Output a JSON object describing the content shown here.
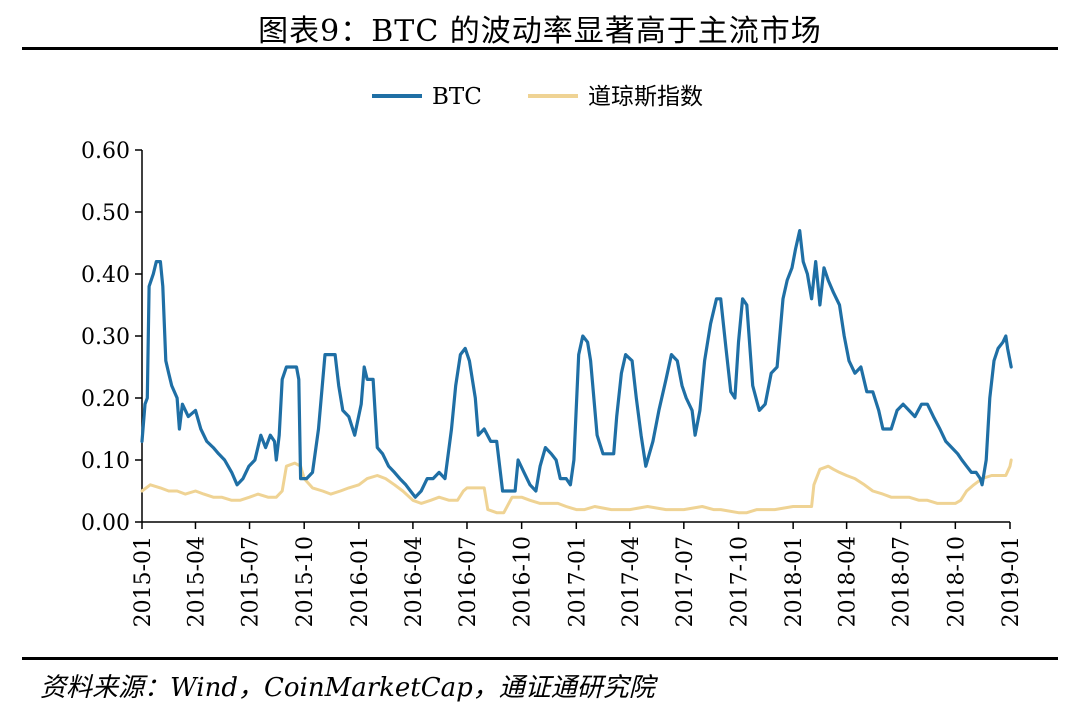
{
  "title": "图表9：BTC 的波动率显著高于主流市场",
  "source": "资料来源：Wind，CoinMarketCap，通证通研究院",
  "chart_data": {
    "type": "line",
    "title": "图表9：BTC 的波动率显著高于主流市场",
    "xlabel": "",
    "ylabel": "",
    "ylim": [
      0,
      0.6
    ],
    "yticks": [
      "0.00",
      "0.10",
      "0.20",
      "0.30",
      "0.40",
      "0.50",
      "0.60"
    ],
    "xticks": [
      "2015-01",
      "2015-04",
      "2015-07",
      "2015-10",
      "2016-01",
      "2016-04",
      "2016-07",
      "2016-10",
      "2017-01",
      "2017-04",
      "2017-07",
      "2017-10",
      "2018-01",
      "2018-04",
      "2018-07",
      "2018-10",
      "2019-01"
    ],
    "xlim": [
      "2015-01-01",
      "2019-01-01"
    ],
    "legend_position": "top-center",
    "grid": false,
    "colors": {
      "BTC": "#1f6fa5",
      "道琼斯指数": "#efd394"
    },
    "series": [
      {
        "name": "BTC",
        "points": [
          [
            "2015-01-01",
            0.13
          ],
          [
            "2015-01-06",
            0.19
          ],
          [
            "2015-01-10",
            0.2
          ],
          [
            "2015-01-13",
            0.38
          ],
          [
            "2015-01-20",
            0.4
          ],
          [
            "2015-01-25",
            0.42
          ],
          [
            "2015-02-01",
            0.42
          ],
          [
            "2015-02-05",
            0.38
          ],
          [
            "2015-02-10",
            0.26
          ],
          [
            "2015-02-15",
            0.24
          ],
          [
            "2015-02-20",
            0.22
          ],
          [
            "2015-03-01",
            0.2
          ],
          [
            "2015-03-05",
            0.15
          ],
          [
            "2015-03-10",
            0.19
          ],
          [
            "2015-03-20",
            0.17
          ],
          [
            "2015-04-01",
            0.18
          ],
          [
            "2015-04-10",
            0.15
          ],
          [
            "2015-04-20",
            0.13
          ],
          [
            "2015-05-01",
            0.12
          ],
          [
            "2015-05-10",
            0.11
          ],
          [
            "2015-05-20",
            0.1
          ],
          [
            "2015-06-01",
            0.08
          ],
          [
            "2015-06-10",
            0.06
          ],
          [
            "2015-06-20",
            0.07
          ],
          [
            "2015-06-30",
            0.09
          ],
          [
            "2015-07-10",
            0.1
          ],
          [
            "2015-07-20",
            0.14
          ],
          [
            "2015-07-28",
            0.12
          ],
          [
            "2015-08-05",
            0.14
          ],
          [
            "2015-08-12",
            0.13
          ],
          [
            "2015-08-15",
            0.1
          ],
          [
            "2015-08-20",
            0.14
          ],
          [
            "2015-08-25",
            0.23
          ],
          [
            "2015-09-01",
            0.25
          ],
          [
            "2015-09-10",
            0.25
          ],
          [
            "2015-09-18",
            0.25
          ],
          [
            "2015-09-22",
            0.23
          ],
          [
            "2015-09-25",
            0.07
          ],
          [
            "2015-10-05",
            0.07
          ],
          [
            "2015-10-15",
            0.08
          ],
          [
            "2015-10-25",
            0.15
          ],
          [
            "2015-11-05",
            0.27
          ],
          [
            "2015-11-15",
            0.27
          ],
          [
            "2015-11-22",
            0.27
          ],
          [
            "2015-11-28",
            0.22
          ],
          [
            "2015-12-05",
            0.18
          ],
          [
            "2015-12-15",
            0.17
          ],
          [
            "2015-12-25",
            0.14
          ],
          [
            "2016-01-05",
            0.19
          ],
          [
            "2016-01-10",
            0.25
          ],
          [
            "2016-01-15",
            0.23
          ],
          [
            "2016-01-25",
            0.23
          ],
          [
            "2016-02-01",
            0.12
          ],
          [
            "2016-02-10",
            0.11
          ],
          [
            "2016-02-20",
            0.09
          ],
          [
            "2016-03-01",
            0.08
          ],
          [
            "2016-03-10",
            0.07
          ],
          [
            "2016-03-20",
            0.06
          ],
          [
            "2016-03-28",
            0.05
          ],
          [
            "2016-04-05",
            0.04
          ],
          [
            "2016-04-15",
            0.05
          ],
          [
            "2016-04-25",
            0.07
          ],
          [
            "2016-05-05",
            0.07
          ],
          [
            "2016-05-15",
            0.08
          ],
          [
            "2016-05-25",
            0.07
          ],
          [
            "2016-06-05",
            0.15
          ],
          [
            "2016-06-12",
            0.22
          ],
          [
            "2016-06-20",
            0.27
          ],
          [
            "2016-06-28",
            0.28
          ],
          [
            "2016-07-05",
            0.26
          ],
          [
            "2016-07-15",
            0.2
          ],
          [
            "2016-07-20",
            0.14
          ],
          [
            "2016-07-30",
            0.15
          ],
          [
            "2016-08-10",
            0.13
          ],
          [
            "2016-08-20",
            0.13
          ],
          [
            "2016-08-30",
            0.05
          ],
          [
            "2016-09-10",
            0.05
          ],
          [
            "2016-09-20",
            0.05
          ],
          [
            "2016-09-25",
            0.1
          ],
          [
            "2016-10-05",
            0.08
          ],
          [
            "2016-10-15",
            0.06
          ],
          [
            "2016-10-25",
            0.05
          ],
          [
            "2016-11-01",
            0.09
          ],
          [
            "2016-11-10",
            0.12
          ],
          [
            "2016-11-20",
            0.11
          ],
          [
            "2016-11-28",
            0.1
          ],
          [
            "2016-12-05",
            0.07
          ],
          [
            "2016-12-15",
            0.07
          ],
          [
            "2016-12-22",
            0.06
          ],
          [
            "2016-12-28",
            0.1
          ],
          [
            "2017-01-05",
            0.27
          ],
          [
            "2017-01-12",
            0.3
          ],
          [
            "2017-01-20",
            0.29
          ],
          [
            "2017-01-25",
            0.26
          ],
          [
            "2017-02-05",
            0.14
          ],
          [
            "2017-02-15",
            0.11
          ],
          [
            "2017-02-25",
            0.11
          ],
          [
            "2017-03-05",
            0.11
          ],
          [
            "2017-03-10",
            0.17
          ],
          [
            "2017-03-18",
            0.24
          ],
          [
            "2017-03-25",
            0.27
          ],
          [
            "2017-04-05",
            0.26
          ],
          [
            "2017-04-12",
            0.2
          ],
          [
            "2017-04-20",
            0.14
          ],
          [
            "2017-04-28",
            0.09
          ],
          [
            "2017-05-10",
            0.13
          ],
          [
            "2017-05-20",
            0.18
          ],
          [
            "2017-06-01",
            0.23
          ],
          [
            "2017-06-10",
            0.27
          ],
          [
            "2017-06-20",
            0.26
          ],
          [
            "2017-06-28",
            0.22
          ],
          [
            "2017-07-05",
            0.2
          ],
          [
            "2017-07-15",
            0.18
          ],
          [
            "2017-07-20",
            0.14
          ],
          [
            "2017-07-28",
            0.18
          ],
          [
            "2017-08-05",
            0.26
          ],
          [
            "2017-08-15",
            0.32
          ],
          [
            "2017-08-25",
            0.36
          ],
          [
            "2017-09-01",
            0.36
          ],
          [
            "2017-09-10",
            0.28
          ],
          [
            "2017-09-18",
            0.21
          ],
          [
            "2017-09-25",
            0.2
          ],
          [
            "2017-10-01",
            0.29
          ],
          [
            "2017-10-08",
            0.36
          ],
          [
            "2017-10-15",
            0.35
          ],
          [
            "2017-10-25",
            0.22
          ],
          [
            "2017-11-05",
            0.18
          ],
          [
            "2017-11-15",
            0.19
          ],
          [
            "2017-11-25",
            0.24
          ],
          [
            "2017-12-05",
            0.25
          ],
          [
            "2017-12-15",
            0.36
          ],
          [
            "2017-12-22",
            0.39
          ],
          [
            "2017-12-30",
            0.41
          ],
          [
            "2018-01-05",
            0.44
          ],
          [
            "2018-01-12",
            0.47
          ],
          [
            "2018-01-18",
            0.42
          ],
          [
            "2018-01-25",
            0.4
          ],
          [
            "2018-02-01",
            0.36
          ],
          [
            "2018-02-08",
            0.42
          ],
          [
            "2018-02-15",
            0.35
          ],
          [
            "2018-02-22",
            0.41
          ],
          [
            "2018-03-01",
            0.39
          ],
          [
            "2018-03-10",
            0.37
          ],
          [
            "2018-03-20",
            0.35
          ],
          [
            "2018-03-28",
            0.3
          ],
          [
            "2018-04-05",
            0.26
          ],
          [
            "2018-04-15",
            0.24
          ],
          [
            "2018-04-25",
            0.25
          ],
          [
            "2018-05-05",
            0.21
          ],
          [
            "2018-05-15",
            0.21
          ],
          [
            "2018-05-25",
            0.18
          ],
          [
            "2018-06-01",
            0.15
          ],
          [
            "2018-06-15",
            0.15
          ],
          [
            "2018-06-25",
            0.18
          ],
          [
            "2018-07-05",
            0.19
          ],
          [
            "2018-07-15",
            0.18
          ],
          [
            "2018-07-25",
            0.17
          ],
          [
            "2018-08-05",
            0.19
          ],
          [
            "2018-08-15",
            0.19
          ],
          [
            "2018-08-25",
            0.17
          ],
          [
            "2018-09-05",
            0.15
          ],
          [
            "2018-09-15",
            0.13
          ],
          [
            "2018-09-25",
            0.12
          ],
          [
            "2018-10-05",
            0.11
          ],
          [
            "2018-10-12",
            0.1
          ],
          [
            "2018-10-20",
            0.09
          ],
          [
            "2018-10-28",
            0.08
          ],
          [
            "2018-11-05",
            0.08
          ],
          [
            "2018-11-12",
            0.07
          ],
          [
            "2018-11-15",
            0.06
          ],
          [
            "2018-11-22",
            0.1
          ],
          [
            "2018-11-28",
            0.2
          ],
          [
            "2018-12-05",
            0.26
          ],
          [
            "2018-12-12",
            0.28
          ],
          [
            "2018-12-20",
            0.29
          ],
          [
            "2018-12-25",
            0.3
          ],
          [
            "2018-12-28",
            0.28
          ],
          [
            "2019-01-01",
            0.26
          ],
          [
            "2019-01-03",
            0.25
          ]
        ]
      },
      {
        "name": "道琼斯指数",
        "points": [
          [
            "2015-01-01",
            0.05
          ],
          [
            "2015-01-15",
            0.06
          ],
          [
            "2015-02-01",
            0.055
          ],
          [
            "2015-02-15",
            0.05
          ],
          [
            "2015-03-01",
            0.05
          ],
          [
            "2015-03-15",
            0.045
          ],
          [
            "2015-04-01",
            0.05
          ],
          [
            "2015-04-15",
            0.045
          ],
          [
            "2015-05-01",
            0.04
          ],
          [
            "2015-05-15",
            0.04
          ],
          [
            "2015-06-01",
            0.035
          ],
          [
            "2015-06-15",
            0.035
          ],
          [
            "2015-07-01",
            0.04
          ],
          [
            "2015-07-15",
            0.045
          ],
          [
            "2015-08-01",
            0.04
          ],
          [
            "2015-08-15",
            0.04
          ],
          [
            "2015-08-25",
            0.05
          ],
          [
            "2015-09-01",
            0.09
          ],
          [
            "2015-09-15",
            0.095
          ],
          [
            "2015-09-25",
            0.09
          ],
          [
            "2015-10-01",
            0.07
          ],
          [
            "2015-10-15",
            0.055
          ],
          [
            "2015-11-01",
            0.05
          ],
          [
            "2015-11-15",
            0.045
          ],
          [
            "2015-12-01",
            0.05
          ],
          [
            "2015-12-15",
            0.055
          ],
          [
            "2016-01-01",
            0.06
          ],
          [
            "2016-01-15",
            0.07
          ],
          [
            "2016-02-01",
            0.075
          ],
          [
            "2016-02-15",
            0.07
          ],
          [
            "2016-03-01",
            0.06
          ],
          [
            "2016-03-15",
            0.05
          ],
          [
            "2016-04-01",
            0.035
          ],
          [
            "2016-04-15",
            0.03
          ],
          [
            "2016-05-01",
            0.035
          ],
          [
            "2016-05-15",
            0.04
          ],
          [
            "2016-06-01",
            0.035
          ],
          [
            "2016-06-15",
            0.035
          ],
          [
            "2016-06-25",
            0.05
          ],
          [
            "2016-07-01",
            0.055
          ],
          [
            "2016-07-15",
            0.055
          ],
          [
            "2016-07-30",
            0.055
          ],
          [
            "2016-08-05",
            0.02
          ],
          [
            "2016-08-20",
            0.015
          ],
          [
            "2016-09-01",
            0.015
          ],
          [
            "2016-09-15",
            0.04
          ],
          [
            "2016-10-01",
            0.04
          ],
          [
            "2016-10-15",
            0.035
          ],
          [
            "2016-11-01",
            0.03
          ],
          [
            "2016-11-15",
            0.03
          ],
          [
            "2016-12-01",
            0.03
          ],
          [
            "2016-12-15",
            0.025
          ],
          [
            "2017-01-01",
            0.02
          ],
          [
            "2017-01-15",
            0.02
          ],
          [
            "2017-02-01",
            0.025
          ],
          [
            "2017-03-01",
            0.02
          ],
          [
            "2017-04-01",
            0.02
          ],
          [
            "2017-05-01",
            0.025
          ],
          [
            "2017-06-01",
            0.02
          ],
          [
            "2017-07-01",
            0.02
          ],
          [
            "2017-08-01",
            0.025
          ],
          [
            "2017-08-20",
            0.02
          ],
          [
            "2017-09-01",
            0.02
          ],
          [
            "2017-10-01",
            0.015
          ],
          [
            "2017-10-15",
            0.015
          ],
          [
            "2017-11-01",
            0.02
          ],
          [
            "2017-12-01",
            0.02
          ],
          [
            "2018-01-01",
            0.025
          ],
          [
            "2018-01-20",
            0.025
          ],
          [
            "2018-02-01",
            0.025
          ],
          [
            "2018-02-05",
            0.06
          ],
          [
            "2018-02-15",
            0.085
          ],
          [
            "2018-03-01",
            0.09
          ],
          [
            "2018-03-10",
            0.085
          ],
          [
            "2018-03-20",
            0.08
          ],
          [
            "2018-04-01",
            0.075
          ],
          [
            "2018-04-15",
            0.07
          ],
          [
            "2018-05-01",
            0.06
          ],
          [
            "2018-05-15",
            0.05
          ],
          [
            "2018-06-01",
            0.045
          ],
          [
            "2018-06-15",
            0.04
          ],
          [
            "2018-07-01",
            0.04
          ],
          [
            "2018-07-15",
            0.04
          ],
          [
            "2018-08-01",
            0.035
          ],
          [
            "2018-08-15",
            0.035
          ],
          [
            "2018-09-01",
            0.03
          ],
          [
            "2018-09-15",
            0.03
          ],
          [
            "2018-10-01",
            0.03
          ],
          [
            "2018-10-10",
            0.035
          ],
          [
            "2018-10-20",
            0.05
          ],
          [
            "2018-11-01",
            0.06
          ],
          [
            "2018-11-15",
            0.07
          ],
          [
            "2018-12-01",
            0.075
          ],
          [
            "2018-12-15",
            0.075
          ],
          [
            "2018-12-25",
            0.075
          ],
          [
            "2019-01-01",
            0.09
          ],
          [
            "2019-01-03",
            0.1
          ]
        ]
      }
    ]
  }
}
